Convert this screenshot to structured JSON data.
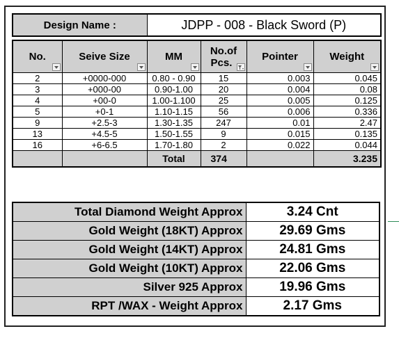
{
  "design": {
    "label": "Design Name :",
    "value": "JDPP - 008 - Black Sword (P)"
  },
  "table": {
    "headers": {
      "no": "No.",
      "sieve": "Seive Size",
      "mm": "MM",
      "pcs_line1": "No.of",
      "pcs_line2": "Pcs.",
      "pointer": "Pointer",
      "weight": "Weight"
    },
    "rows": [
      {
        "no": "2",
        "sieve": "+0000-000",
        "mm": "0.80 - 0.90",
        "pcs": "15",
        "pointer": "0.003",
        "weight": "0.045"
      },
      {
        "no": "3",
        "sieve": "+000-00",
        "mm": "0.90-1.00",
        "pcs": "20",
        "pointer": "0.004",
        "weight": "0.08"
      },
      {
        "no": "4",
        "sieve": "+00-0",
        "mm": "1.00-1.100",
        "pcs": "25",
        "pointer": "0.005",
        "weight": "0.125"
      },
      {
        "no": "5",
        "sieve": "+0-1",
        "mm": "1.10-1.15",
        "pcs": "56",
        "pointer": "0.006",
        "weight": "0.336"
      },
      {
        "no": "9",
        "sieve": "+2.5-3",
        "mm": "1.30-1.35",
        "pcs": "247",
        "pointer": "0.01",
        "weight": "2.47"
      },
      {
        "no": "13",
        "sieve": "+4.5-5",
        "mm": "1.50-1.55",
        "pcs": "9",
        "pointer": "0.015",
        "weight": "0.135"
      },
      {
        "no": "16",
        "sieve": "+6-6.5",
        "mm": "1.70-1.80",
        "pcs": "2",
        "pointer": "0.022",
        "weight": "0.044"
      }
    ],
    "total": {
      "label": "Total",
      "pcs": "374",
      "weight": "3.235"
    }
  },
  "summary": [
    {
      "label": "Total Diamond Weight Approx",
      "value": "3.24 Cnt"
    },
    {
      "label": "Gold Weight (18KT) Approx",
      "value": "29.69 Gms"
    },
    {
      "label": "Gold Weight (14KT) Approx",
      "value": "24.81 Gms"
    },
    {
      "label": "Gold Weight (10KT) Approx",
      "value": "22.06 Gms"
    },
    {
      "label": "Silver 925 Approx",
      "value": "19.96 Gms"
    },
    {
      "label": "RPT /WAX - Weight Approx",
      "value": "2.17 Gms"
    }
  ],
  "icons": {
    "filter": "filter-dropdown-icon",
    "active_filter": "filter-active-icon"
  },
  "colors": {
    "header_fill": "#d0d0d0"
  }
}
